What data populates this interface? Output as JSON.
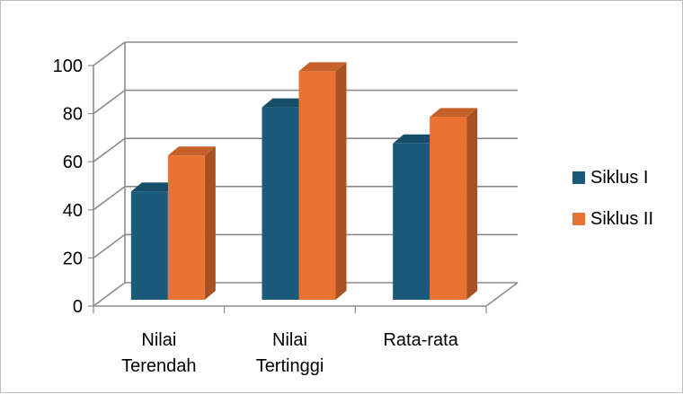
{
  "chart_data": {
    "type": "bar",
    "categories": [
      [
        "Nilai",
        "Terendah"
      ],
      [
        "Nilai",
        "Tertinggi"
      ],
      [
        "Rata-rata"
      ]
    ],
    "series": [
      {
        "name": "Siklus I",
        "values": [
          45,
          80,
          65
        ],
        "color": "#1a5a7a"
      },
      {
        "name": "Siklus II",
        "values": [
          60,
          95,
          76
        ],
        "color": "#ea7232"
      }
    ],
    "yticks": [
      "0",
      "20",
      "40",
      "60",
      "80",
      "100"
    ],
    "ylim": [
      0,
      100
    ],
    "grid": true,
    "legend_position": "right",
    "style": "3d-clustered-column"
  }
}
